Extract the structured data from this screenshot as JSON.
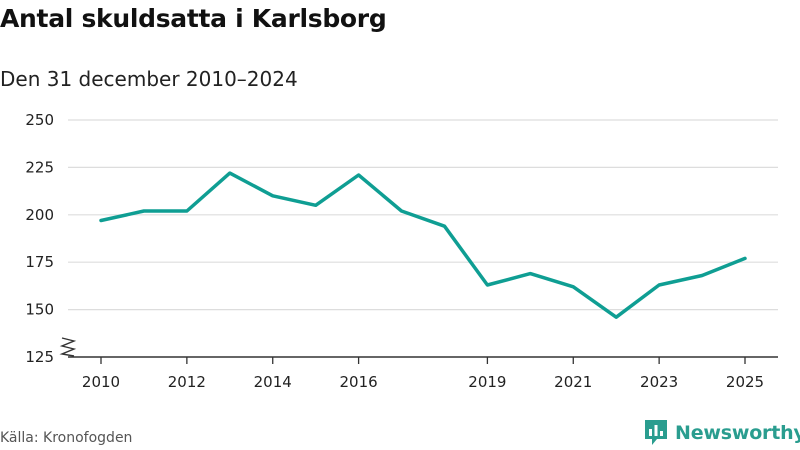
{
  "chart_data": {
    "type": "line",
    "title": "Antal skuldsatta i Karlsborg",
    "subtitle": "Den 31 december 2010–2024",
    "xlabel": "",
    "ylabel": "",
    "x": [
      2010,
      2011,
      2012,
      2013,
      2014,
      2015,
      2016,
      2017,
      2018,
      2019,
      2020,
      2021,
      2022,
      2023,
      2024,
      2025
    ],
    "x_ticks": [
      "2010",
      "2012",
      "2014",
      "2016",
      "2019",
      "2021",
      "2023",
      "2025"
    ],
    "y_ticks": [
      "125",
      "150",
      "175",
      "200",
      "225",
      "250"
    ],
    "series": [
      {
        "name": "Antal skuldsatta",
        "color": "#0f9e93",
        "values": [
          197,
          202,
          202,
          222,
          210,
          205,
          221,
          202,
          194,
          163,
          169,
          162,
          146,
          163,
          168,
          177
        ]
      }
    ],
    "xlim": [
      2010,
      2025
    ],
    "ylim": [
      125,
      250
    ],
    "grid": true,
    "axis_break": true,
    "legend": "none"
  },
  "footer": {
    "source": "Källa: Kronofogden",
    "brand": "Newsworthy"
  },
  "colors": {
    "line": "#0f9e93",
    "brand": "#2a9d8f",
    "grid": "#dddddd",
    "axis": "#333333"
  }
}
